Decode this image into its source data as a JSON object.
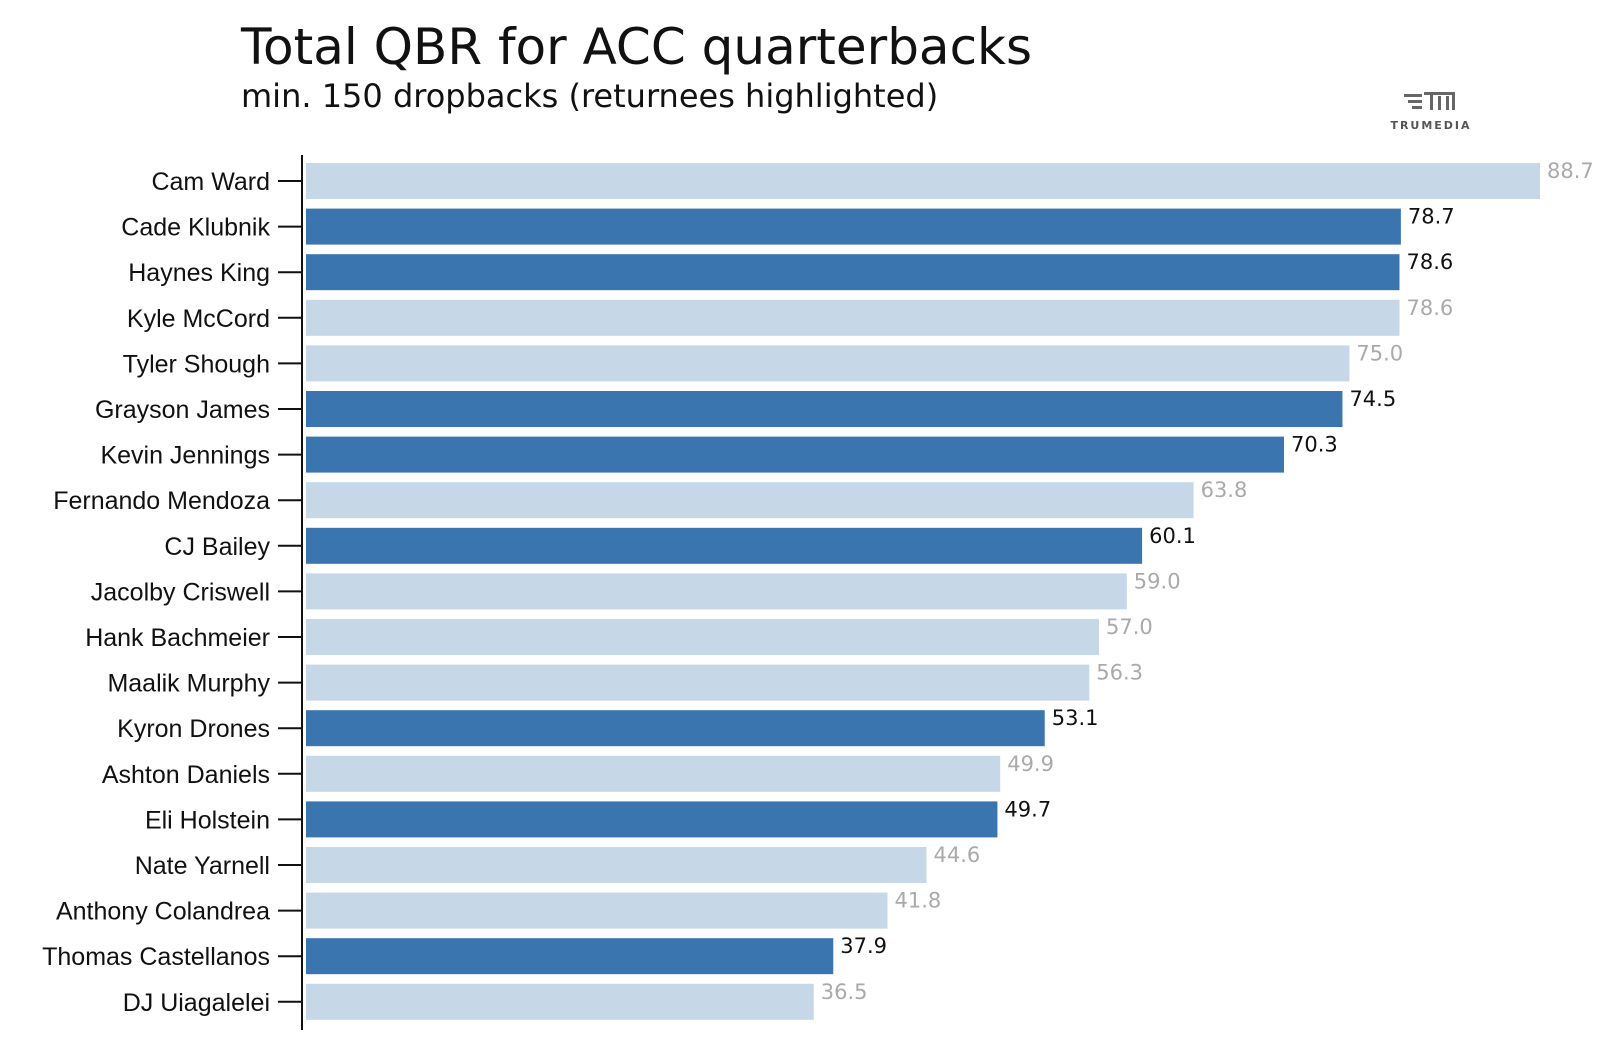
{
  "title": "Total QBR for ACC quarterbacks",
  "subtitle": "min. 150 dropbacks (returnees highlighted)",
  "logo": {
    "text": "TRUMEDIA",
    "icon": "trumedia-logo-icon"
  },
  "colors": {
    "returnee": "#3b75af",
    "other": "#c6d7e8",
    "returnee_label": "#111111",
    "other_label": "#aaaaaa"
  },
  "chart_data": {
    "type": "bar",
    "orientation": "horizontal",
    "title": "Total QBR for ACC quarterbacks",
    "subtitle": "min. 150 dropbacks (returnees highlighted)",
    "xlim": [
      0,
      88.7
    ],
    "grid": false,
    "categories": [
      "Cam Ward",
      "Cade Klubnik",
      "Haynes King",
      "Kyle McCord",
      "Tyler Shough",
      "Grayson James",
      "Kevin Jennings",
      "Fernando Mendoza",
      "CJ Bailey",
      "Jacolby Criswell",
      "Hank Bachmeier",
      "Maalik Murphy",
      "Kyron Drones",
      "Ashton Daniels",
      "Eli Holstein",
      "Nate Yarnell",
      "Anthony Colandrea",
      "Thomas Castellanos",
      "DJ Uiagalelei"
    ],
    "values": [
      88.7,
      78.7,
      78.6,
      78.6,
      75.0,
      74.5,
      70.3,
      63.8,
      60.1,
      59.0,
      57.0,
      56.3,
      53.1,
      49.9,
      49.7,
      44.6,
      41.8,
      37.9,
      36.5
    ],
    "value_labels": [
      "88.7",
      "78.7",
      "78.6",
      "78.6",
      "75.0",
      "74.5",
      "70.3",
      "63.8",
      "60.1",
      "59.0",
      "57.0",
      "56.3",
      "53.1",
      "49.9",
      "49.7",
      "44.6",
      "41.8",
      "37.9",
      "36.5"
    ],
    "returnee": [
      false,
      true,
      true,
      false,
      false,
      true,
      true,
      false,
      true,
      false,
      false,
      false,
      true,
      false,
      true,
      false,
      false,
      true,
      false
    ]
  }
}
